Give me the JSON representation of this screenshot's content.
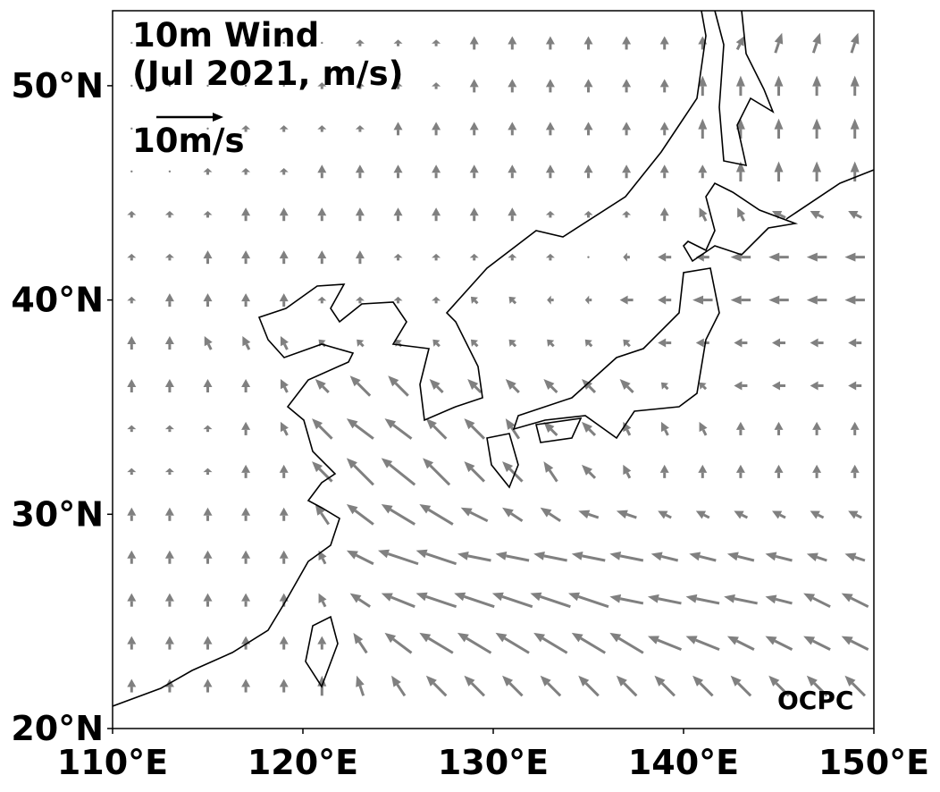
{
  "title": [
    "10m Wind",
    "(Jul 2021, m/s)"
  ],
  "reference": {
    "speed": 10,
    "label": "10m/s"
  },
  "logo": "OCPC",
  "xlim": [
    110,
    150
  ],
  "ylim": [
    20,
    53.5
  ],
  "xticks": [
    {
      "value": 110,
      "label": "110°E"
    },
    {
      "value": 120,
      "label": "120°E"
    },
    {
      "value": 130,
      "label": "130°E"
    },
    {
      "value": 140,
      "label": "140°E"
    },
    {
      "value": 150,
      "label": "150°E"
    }
  ],
  "yticks": [
    {
      "value": 20,
      "label": "20°N"
    },
    {
      "value": 30,
      "label": "30°N"
    },
    {
      "value": 40,
      "label": "40°N"
    },
    {
      "value": 50,
      "label": "50°N"
    }
  ],
  "wind": {
    "color": "#808080",
    "lons": [
      111,
      113,
      115,
      117,
      119,
      121,
      123,
      125,
      127,
      129,
      131,
      133,
      135,
      137,
      139,
      141,
      143,
      145,
      147,
      149
    ],
    "lats": [
      52,
      50,
      48,
      46,
      44,
      42,
      40,
      38,
      36,
      34,
      32,
      30,
      28,
      26,
      24,
      22
    ],
    "u": [
      [
        0,
        0,
        0,
        0,
        0,
        0,
        0,
        0,
        0,
        0,
        0,
        0,
        0,
        0,
        0,
        0,
        1,
        1,
        1,
        1
      ],
      [
        0,
        0,
        0,
        0,
        0,
        0,
        0,
        0,
        0,
        0,
        0,
        0,
        0,
        0,
        0,
        0,
        0,
        0,
        0,
        0
      ],
      [
        0,
        0,
        0,
        0,
        0,
        0,
        0,
        0,
        0,
        0,
        0,
        0,
        0,
        0,
        0,
        0,
        0,
        0,
        0,
        0
      ],
      [
        0,
        0,
        0,
        0,
        0,
        0,
        0,
        0,
        0,
        0,
        0,
        0,
        0,
        0,
        0,
        0,
        0,
        0,
        0,
        0
      ],
      [
        0,
        0,
        0,
        0,
        0,
        0,
        0,
        0,
        0,
        0,
        0,
        0,
        0,
        0,
        0,
        -1,
        -1,
        -2,
        -2,
        -2
      ],
      [
        0,
        0,
        0,
        0,
        0,
        0,
        0,
        0,
        0,
        0,
        0,
        0,
        0,
        -1,
        -2,
        -2,
        -3,
        -3,
        -3,
        -3
      ],
      [
        0,
        0,
        0,
        0,
        0,
        0,
        0,
        0,
        0,
        -1,
        -1,
        -1,
        -1,
        -2,
        -2,
        -3,
        -3,
        -3,
        -3,
        -3
      ],
      [
        0,
        0,
        -1,
        -1,
        -1,
        -1,
        -1,
        -1,
        -1,
        -1,
        -1,
        -1,
        -1,
        -1,
        -2,
        -2,
        -2,
        -2,
        -2,
        -2
      ],
      [
        0,
        0,
        0,
        0,
        -1,
        -2,
        -3,
        -3,
        -2,
        -2,
        -2,
        -2,
        -2,
        -2,
        -1,
        -1,
        -2,
        -2,
        -2,
        -2
      ],
      [
        0,
        0,
        0,
        0,
        -1,
        -3,
        -4,
        -4,
        -3,
        -3,
        -2,
        -2,
        -2,
        -1,
        -1,
        -1,
        0,
        0,
        0,
        0
      ],
      [
        0,
        0,
        0,
        0,
        0,
        -3,
        -4,
        -5,
        -4,
        -3,
        -3,
        -2,
        -2,
        -1,
        0,
        0,
        0,
        0,
        0,
        0
      ],
      [
        0,
        0,
        0,
        0,
        0,
        -2,
        -4,
        -5,
        -5,
        -4,
        -3,
        -3,
        -3,
        -3,
        -2,
        -2,
        -2,
        -2,
        -2,
        -2
      ],
      [
        0,
        0,
        0,
        0,
        0,
        -1,
        -4,
        -6,
        -6,
        -5,
        -5,
        -5,
        -5,
        -5,
        -4,
        -4,
        -4,
        -4,
        -3,
        -3
      ],
      [
        0,
        0,
        0,
        0,
        0,
        -1,
        -3,
        -5,
        -6,
        -6,
        -6,
        -6,
        -6,
        -5,
        -5,
        -5,
        -5,
        -4,
        -4,
        -4
      ],
      [
        0,
        0,
        0,
        0,
        0,
        0,
        -2,
        -4,
        -5,
        -5,
        -5,
        -5,
        -5,
        -5,
        -5,
        -5,
        -4,
        -4,
        -4,
        -4
      ],
      [
        0,
        0,
        0,
        0,
        0,
        0,
        -1,
        -2,
        -3,
        -3,
        -3,
        -3,
        -3,
        -3,
        -3,
        -3,
        -3,
        -3,
        -3,
        -3
      ]
    ],
    "v": [
      [
        0,
        0,
        0,
        0,
        0,
        0,
        1,
        1,
        1,
        2,
        2,
        2,
        2,
        2,
        2,
        2,
        2,
        3,
        3,
        3
      ],
      [
        0,
        0,
        0,
        0,
        0,
        1,
        1,
        1,
        1,
        2,
        2,
        2,
        2,
        2,
        2,
        3,
        3,
        3,
        3,
        3
      ],
      [
        0,
        0,
        0,
        1,
        1,
        1,
        1,
        2,
        2,
        2,
        2,
        2,
        2,
        2,
        2,
        3,
        3,
        3,
        3,
        3
      ],
      [
        0,
        0,
        1,
        1,
        1,
        2,
        2,
        2,
        2,
        2,
        2,
        2,
        2,
        2,
        2,
        2,
        3,
        3,
        3,
        3
      ],
      [
        1,
        1,
        1,
        2,
        2,
        2,
        2,
        2,
        2,
        2,
        2,
        1,
        1,
        1,
        2,
        2,
        2,
        1,
        1,
        1
      ],
      [
        1,
        1,
        2,
        2,
        2,
        2,
        2,
        1,
        1,
        1,
        1,
        1,
        0,
        0,
        0,
        0,
        0,
        0,
        0,
        0
      ],
      [
        1,
        2,
        2,
        2,
        2,
        1,
        1,
        1,
        1,
        1,
        1,
        0,
        0,
        0,
        0,
        0,
        0,
        0,
        0,
        0
      ],
      [
        2,
        2,
        2,
        2,
        2,
        1,
        1,
        1,
        1,
        1,
        1,
        1,
        1,
        1,
        0,
        0,
        0,
        0,
        0,
        0
      ],
      [
        2,
        2,
        2,
        2,
        2,
        2,
        3,
        3,
        2,
        2,
        2,
        2,
        2,
        2,
        1,
        1,
        0,
        0,
        0,
        0
      ],
      [
        1,
        1,
        1,
        2,
        2,
        3,
        3,
        3,
        3,
        3,
        3,
        2,
        2,
        2,
        2,
        2,
        2,
        2,
        2,
        2
      ],
      [
        1,
        1,
        1,
        2,
        2,
        3,
        4,
        4,
        4,
        3,
        3,
        3,
        2,
        2,
        2,
        2,
        2,
        2,
        2,
        2
      ],
      [
        2,
        2,
        2,
        2,
        2,
        3,
        3,
        3,
        3,
        2,
        2,
        2,
        1,
        1,
        1,
        1,
        1,
        1,
        1,
        1
      ],
      [
        2,
        2,
        2,
        2,
        2,
        2,
        2,
        2,
        2,
        1,
        1,
        1,
        1,
        1,
        1,
        1,
        1,
        1,
        1,
        1
      ],
      [
        2,
        2,
        2,
        2,
        2,
        2,
        2,
        2,
        2,
        2,
        2,
        2,
        2,
        1,
        1,
        1,
        1,
        1,
        2,
        2
      ],
      [
        2,
        2,
        2,
        2,
        2,
        2,
        3,
        3,
        3,
        3,
        3,
        3,
        3,
        3,
        2,
        2,
        2,
        2,
        2,
        2
      ],
      [
        2,
        2,
        2,
        2,
        2,
        3,
        3,
        3,
        3,
        3,
        3,
        3,
        3,
        3,
        3,
        3,
        3,
        3,
        3,
        3
      ]
    ]
  }
}
